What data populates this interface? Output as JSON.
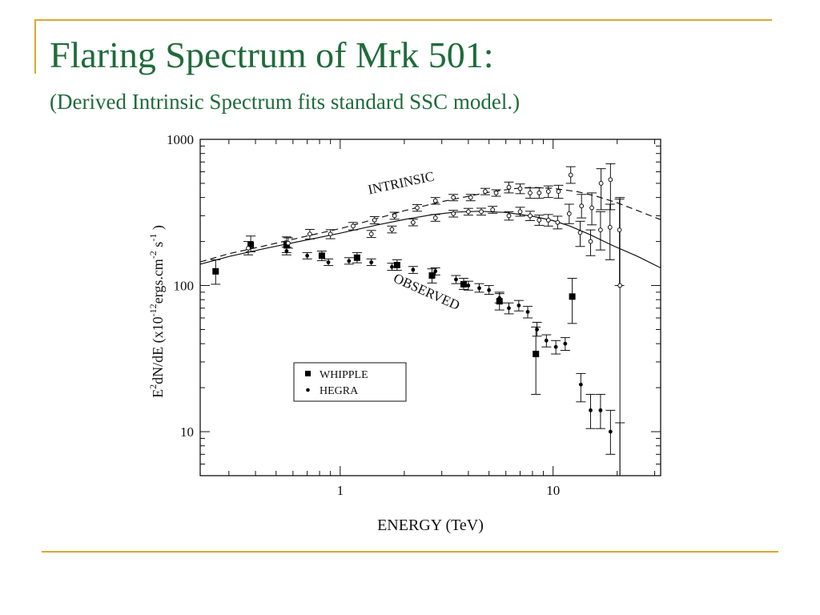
{
  "slide": {
    "title": "Flaring Spectrum of Mrk 501:",
    "subtitle": "(Derived Intrinsic Spectrum fits standard SSC model.)"
  },
  "chart_data": {
    "type": "scatter",
    "xlabel": "ENERGY (TeV)",
    "ylabel_parts": [
      "E",
      "2",
      "dN/dE (x10",
      "-12",
      "ergs.cm",
      "-2",
      " s",
      "-1",
      " )"
    ],
    "xscale": "log",
    "yscale": "log",
    "xlim": [
      0.22,
      32
    ],
    "ylim": [
      5,
      1000
    ],
    "x_ticks": [
      {
        "value": 1,
        "label": "1"
      },
      {
        "value": 10,
        "label": "10"
      }
    ],
    "y_ticks": [
      {
        "value": 10,
        "label": "10"
      },
      {
        "value": 100,
        "label": "100"
      },
      {
        "value": 1000,
        "label": "1000"
      }
    ],
    "legend": {
      "position": "lower-left",
      "entries": [
        {
          "label": "WHIPPLE",
          "marker": "square"
        },
        {
          "label": "HEGRA",
          "marker": "dot"
        }
      ]
    },
    "annotations": [
      {
        "text": "INTRINSIC",
        "x": 1.95,
        "y": 470,
        "angle": -12
      },
      {
        "text": "OBSERVED",
        "x": 2.5,
        "y": 85,
        "angle": 24
      }
    ],
    "series": [
      {
        "name": "WHIPPLE",
        "role": "observed",
        "marker": "square",
        "points": [
          {
            "x": 0.26,
            "y": 125,
            "lo": 102,
            "hi": 150
          },
          {
            "x": 0.38,
            "y": 190,
            "lo": 170,
            "hi": 218
          },
          {
            "x": 0.56,
            "y": 190,
            "lo": 168,
            "hi": 215
          },
          {
            "x": 0.82,
            "y": 160,
            "lo": 148,
            "hi": 172
          },
          {
            "x": 1.2,
            "y": 155,
            "lo": 143,
            "hi": 168
          },
          {
            "x": 1.85,
            "y": 138,
            "lo": 127,
            "hi": 150
          },
          {
            "x": 2.7,
            "y": 117,
            "lo": 104,
            "hi": 130
          },
          {
            "x": 3.8,
            "y": 102,
            "lo": 94,
            "hi": 112
          },
          {
            "x": 5.6,
            "y": 78,
            "lo": 68,
            "hi": 90
          },
          {
            "x": 8.3,
            "y": 34,
            "lo": 18,
            "hi": 52
          },
          {
            "x": 12.3,
            "y": 84,
            "lo": 55,
            "hi": 112
          }
        ]
      },
      {
        "name": "HEGRA",
        "role": "observed",
        "marker": "dot",
        "points": [
          {
            "x": 0.56,
            "y": 172,
            "lo": 162,
            "hi": 183
          },
          {
            "x": 0.7,
            "y": 160,
            "lo": 152,
            "hi": 168
          },
          {
            "x": 0.88,
            "y": 144,
            "lo": 137,
            "hi": 152
          },
          {
            "x": 1.1,
            "y": 147,
            "lo": 140,
            "hi": 155
          },
          {
            "x": 1.4,
            "y": 144,
            "lo": 137,
            "hi": 152
          },
          {
            "x": 1.75,
            "y": 134,
            "lo": 127,
            "hi": 142
          },
          {
            "x": 2.2,
            "y": 128,
            "lo": 121,
            "hi": 135
          },
          {
            "x": 2.8,
            "y": 125,
            "lo": 118,
            "hi": 132
          },
          {
            "x": 3.5,
            "y": 110,
            "lo": 103,
            "hi": 117
          },
          {
            "x": 4.0,
            "y": 100,
            "lo": 93,
            "hi": 107
          },
          {
            "x": 4.5,
            "y": 96,
            "lo": 90,
            "hi": 103
          },
          {
            "x": 5.0,
            "y": 93,
            "lo": 87,
            "hi": 100
          },
          {
            "x": 5.6,
            "y": 82,
            "lo": 76,
            "hi": 88
          },
          {
            "x": 6.2,
            "y": 70,
            "lo": 64,
            "hi": 76
          },
          {
            "x": 6.9,
            "y": 73,
            "lo": 67,
            "hi": 79
          },
          {
            "x": 7.6,
            "y": 66,
            "lo": 60,
            "hi": 72
          },
          {
            "x": 8.4,
            "y": 50,
            "lo": 45,
            "hi": 56
          },
          {
            "x": 9.3,
            "y": 42,
            "lo": 38,
            "hi": 46
          },
          {
            "x": 10.3,
            "y": 38,
            "lo": 34,
            "hi": 42
          },
          {
            "x": 11.4,
            "y": 40,
            "lo": 36,
            "hi": 44
          },
          {
            "x": 13.5,
            "y": 21,
            "lo": 16,
            "hi": 25
          },
          {
            "x": 15.0,
            "y": 14,
            "lo": 10.5,
            "hi": 18
          },
          {
            "x": 16.7,
            "y": 14,
            "lo": 10.5,
            "hi": 18
          },
          {
            "x": 18.6,
            "y": 10,
            "lo": 7,
            "hi": 14
          },
          {
            "x": 20.6,
            "y": 0,
            "lo": 0,
            "hi": 11.5
          }
        ]
      },
      {
        "name": "Intrinsic (upper)",
        "role": "intrinsic",
        "marker": "open-circle",
        "points": [
          {
            "x": 0.72,
            "y": 225,
            "lo": 208,
            "hi": 242
          },
          {
            "x": 0.9,
            "y": 225,
            "lo": 209,
            "hi": 241
          },
          {
            "x": 1.15,
            "y": 255,
            "lo": 240,
            "hi": 270
          },
          {
            "x": 1.45,
            "y": 280,
            "lo": 264,
            "hi": 296
          },
          {
            "x": 1.8,
            "y": 300,
            "lo": 284,
            "hi": 317
          },
          {
            "x": 2.3,
            "y": 340,
            "lo": 322,
            "hi": 358
          },
          {
            "x": 2.8,
            "y": 380,
            "lo": 360,
            "hi": 400
          },
          {
            "x": 3.4,
            "y": 400,
            "lo": 380,
            "hi": 420
          },
          {
            "x": 4.1,
            "y": 400,
            "lo": 380,
            "hi": 420
          },
          {
            "x": 4.8,
            "y": 440,
            "lo": 418,
            "hi": 462
          },
          {
            "x": 5.4,
            "y": 430,
            "lo": 408,
            "hi": 452
          },
          {
            "x": 6.2,
            "y": 470,
            "lo": 430,
            "hi": 510
          },
          {
            "x": 7.0,
            "y": 460,
            "lo": 425,
            "hi": 495
          },
          {
            "x": 7.8,
            "y": 430,
            "lo": 395,
            "hi": 465
          },
          {
            "x": 8.6,
            "y": 430,
            "lo": 395,
            "hi": 465
          },
          {
            "x": 9.5,
            "y": 440,
            "lo": 400,
            "hi": 480
          },
          {
            "x": 10.6,
            "y": 440,
            "lo": 395,
            "hi": 485
          },
          {
            "x": 12.1,
            "y": 570,
            "lo": 500,
            "hi": 650
          },
          {
            "x": 13.6,
            "y": 350,
            "lo": 290,
            "hi": 420
          },
          {
            "x": 15.2,
            "y": 340,
            "lo": 260,
            "hi": 430
          },
          {
            "x": 16.8,
            "y": 500,
            "lo": 330,
            "hi": 630
          },
          {
            "x": 18.6,
            "y": 530,
            "lo": 330,
            "hi": 680
          },
          {
            "x": 20.6,
            "y": 100,
            "lo": 5,
            "hi": 400
          }
        ]
      },
      {
        "name": "Intrinsic (lower)",
        "role": "intrinsic",
        "marker": "open-circle",
        "points": [
          {
            "x": 0.37,
            "y": 180,
            "lo": 162,
            "hi": 200
          },
          {
            "x": 0.57,
            "y": 195,
            "lo": 180,
            "hi": 212
          },
          {
            "x": 1.4,
            "y": 225,
            "lo": 213,
            "hi": 238
          },
          {
            "x": 1.75,
            "y": 242,
            "lo": 229,
            "hi": 255
          },
          {
            "x": 2.2,
            "y": 270,
            "lo": 256,
            "hi": 285
          },
          {
            "x": 2.8,
            "y": 290,
            "lo": 275,
            "hi": 306
          },
          {
            "x": 3.4,
            "y": 310,
            "lo": 294,
            "hi": 327
          },
          {
            "x": 4.0,
            "y": 320,
            "lo": 303,
            "hi": 337
          },
          {
            "x": 4.6,
            "y": 320,
            "lo": 303,
            "hi": 338
          },
          {
            "x": 5.2,
            "y": 330,
            "lo": 312,
            "hi": 348
          },
          {
            "x": 6.2,
            "y": 300,
            "lo": 280,
            "hi": 320
          },
          {
            "x": 7.0,
            "y": 320,
            "lo": 298,
            "hi": 343
          },
          {
            "x": 7.8,
            "y": 300,
            "lo": 278,
            "hi": 322
          },
          {
            "x": 8.6,
            "y": 280,
            "lo": 258,
            "hi": 303
          },
          {
            "x": 9.5,
            "y": 280,
            "lo": 255,
            "hi": 306
          },
          {
            "x": 10.5,
            "y": 270,
            "lo": 244,
            "hi": 298
          },
          {
            "x": 11.9,
            "y": 310,
            "lo": 265,
            "hi": 360
          },
          {
            "x": 13.4,
            "y": 230,
            "lo": 185,
            "hi": 275
          },
          {
            "x": 15.0,
            "y": 200,
            "lo": 160,
            "hi": 240
          },
          {
            "x": 16.7,
            "y": 240,
            "lo": 175,
            "hi": 320
          },
          {
            "x": 18.5,
            "y": 250,
            "lo": 150,
            "hi": 360
          },
          {
            "x": 20.5,
            "y": 240,
            "lo": 100,
            "hi": 390
          }
        ]
      }
    ],
    "curves": [
      {
        "name": "SSC model (dashed)",
        "style": "dashed",
        "points": [
          [
            0.22,
            145
          ],
          [
            0.3,
            165
          ],
          [
            0.45,
            188
          ],
          [
            0.7,
            218
          ],
          [
            1.0,
            245
          ],
          [
            1.5,
            288
          ],
          [
            2.0,
            325
          ],
          [
            3.0,
            375
          ],
          [
            4.0,
            408
          ],
          [
            5.0,
            435
          ],
          [
            6.5,
            460
          ],
          [
            8.0,
            470
          ],
          [
            10.0,
            462
          ],
          [
            13.0,
            438
          ],
          [
            16.0,
            408
          ],
          [
            20.0,
            368
          ],
          [
            25.0,
            325
          ],
          [
            32.0,
            282
          ]
        ]
      },
      {
        "name": "SSC model (solid)",
        "style": "solid",
        "points": [
          [
            0.22,
            140
          ],
          [
            0.3,
            158
          ],
          [
            0.45,
            180
          ],
          [
            0.7,
            205
          ],
          [
            1.0,
            228
          ],
          [
            1.5,
            260
          ],
          [
            2.0,
            283
          ],
          [
            2.7,
            305
          ],
          [
            3.5,
            318
          ],
          [
            4.5,
            322
          ],
          [
            6.0,
            316
          ],
          [
            8.0,
            298
          ],
          [
            10.0,
            278
          ],
          [
            12.0,
            255
          ],
          [
            15.0,
            222
          ],
          [
            19.0,
            188
          ],
          [
            25.0,
            158
          ],
          [
            32.0,
            132
          ]
        ]
      }
    ]
  }
}
